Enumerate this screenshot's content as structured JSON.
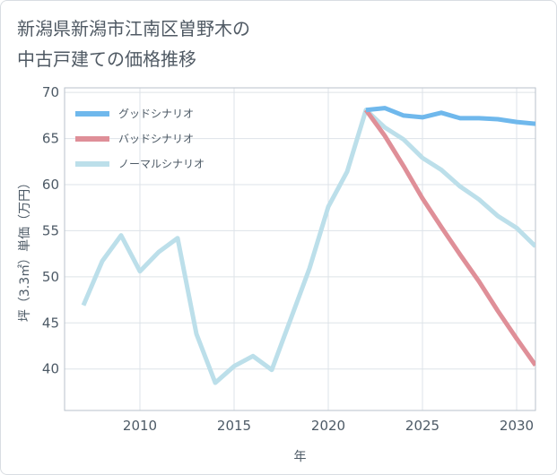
{
  "title_lines": [
    "新潟県新潟市江南区曽野木の",
    "中古戸建ての価格推移"
  ],
  "chart_data": {
    "type": "line",
    "xlabel": "年",
    "ylabel": "坪（3.3㎡）単価（万円）",
    "xlim": [
      2006,
      2031
    ],
    "ylim": [
      35.5,
      70.5
    ],
    "xticks": [
      2010,
      2015,
      2020,
      2025,
      2030
    ],
    "yticks": [
      40,
      45,
      50,
      55,
      60,
      65,
      70
    ],
    "grid": true,
    "legend_position": "top-left",
    "series": [
      {
        "name": "グッドシナリオ",
        "color": "#6fb8ec",
        "x": [
          2022,
          2023,
          2024,
          2025,
          2026,
          2027,
          2028,
          2029,
          2030,
          2031
        ],
        "y": [
          68.1,
          68.3,
          67.5,
          67.3,
          67.8,
          67.2,
          67.2,
          67.1,
          66.8,
          66.6
        ]
      },
      {
        "name": "バッドシナリオ",
        "color": "#df8f98",
        "x": [
          2022,
          2023,
          2024,
          2025,
          2026,
          2027,
          2028,
          2029,
          2030,
          2031
        ],
        "y": [
          68.1,
          65.3,
          62.0,
          58.5,
          55.4,
          52.4,
          49.5,
          46.3,
          43.3,
          40.4
        ]
      },
      {
        "name": "ノーマルシナリオ",
        "color": "#bcdfea",
        "x": [
          2007,
          2008,
          2009,
          2010,
          2011,
          2012,
          2013,
          2014,
          2015,
          2016,
          2017,
          2018,
          2019,
          2020,
          2021,
          2022,
          2023,
          2024,
          2025,
          2026,
          2027,
          2028,
          2029,
          2030,
          2031
        ],
        "y": [
          46.9,
          51.7,
          54.5,
          50.6,
          52.7,
          54.2,
          43.8,
          38.5,
          40.3,
          41.4,
          39.9,
          45.4,
          50.9,
          57.6,
          61.4,
          68.1,
          66.2,
          64.9,
          62.9,
          61.6,
          59.8,
          58.4,
          56.6,
          55.3,
          53.3
        ]
      }
    ]
  }
}
